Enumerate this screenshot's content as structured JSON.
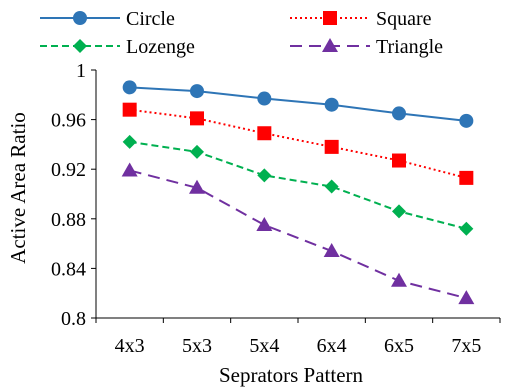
{
  "chart_data": {
    "type": "line",
    "title": "",
    "xlabel": "Seprators Pattern",
    "ylabel": "Active Area Ratio",
    "categories": [
      "4x3",
      "5x3",
      "5x4",
      "6x4",
      "6x5",
      "7x5"
    ],
    "ylim": [
      0.8,
      1.0
    ],
    "yticks": [
      0.8,
      0.84,
      0.88,
      0.92,
      0.96,
      1
    ],
    "ytick_labels": [
      "0.8",
      "0.84",
      "0.88",
      "0.92",
      "0.96",
      "1"
    ],
    "grid": false,
    "legend": "top",
    "series": [
      {
        "name": "Circle",
        "values": [
          0.986,
          0.983,
          0.977,
          0.972,
          0.965,
          0.959
        ],
        "color": "#2e75b6",
        "marker": "circle",
        "dash": "solid"
      },
      {
        "name": "Square",
        "values": [
          0.968,
          0.961,
          0.949,
          0.938,
          0.927,
          0.913
        ],
        "color": "#ff0000",
        "marker": "square",
        "dash": "dotted"
      },
      {
        "name": "Lozenge",
        "values": [
          0.942,
          0.934,
          0.915,
          0.906,
          0.886,
          0.872
        ],
        "color": "#00b050",
        "marker": "diamond",
        "dash": "dashed"
      },
      {
        "name": "Triangle",
        "values": [
          0.919,
          0.905,
          0.875,
          0.854,
          0.83,
          0.816
        ],
        "color": "#7030a0",
        "marker": "triangle",
        "dash": "longdash"
      }
    ]
  }
}
